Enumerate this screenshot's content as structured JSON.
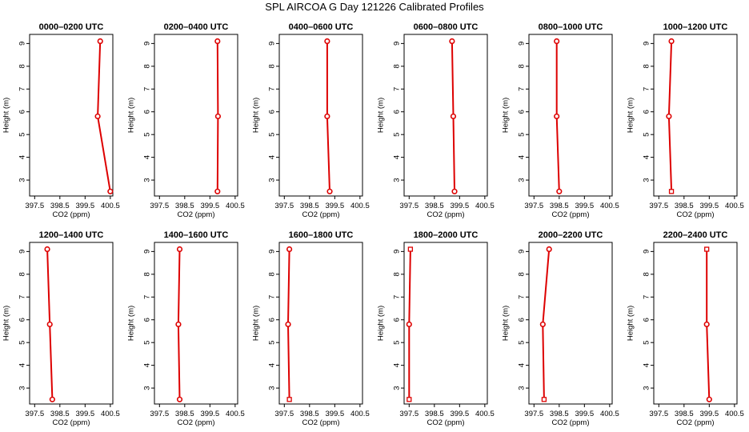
{
  "page": {
    "title": "SPL AIRCOA G  Day 121226  Calibrated Profiles"
  },
  "colors": {
    "series": "#dd0000",
    "axis": "#000000"
  },
  "chart_data": [
    {
      "type": "line",
      "title": "0000–0200 UTC",
      "xlabel": "CO2 (ppm)",
      "ylabel": "Height (m)",
      "xlim": [
        397.3,
        400.6
      ],
      "ylim": [
        2.3,
        9.4
      ],
      "xticks": [
        "397.5",
        "398.5",
        "399.5",
        "400.5"
      ],
      "yticks": [
        "3",
        "4",
        "5",
        "6",
        "7",
        "8",
        "9"
      ],
      "x": [
        400.5,
        400.0,
        400.1
      ],
      "y": [
        2.5,
        5.8,
        9.1
      ],
      "markers": [
        "circle",
        "circle",
        "circle"
      ]
    },
    {
      "type": "line",
      "title": "0200–0400 UTC",
      "xlabel": "CO2 (ppm)",
      "ylabel": "Height (m)",
      "xlim": [
        397.3,
        400.6
      ],
      "ylim": [
        2.3,
        9.4
      ],
      "xticks": [
        "397.5",
        "398.5",
        "399.5",
        "400.5"
      ],
      "yticks": [
        "3",
        "4",
        "5",
        "6",
        "7",
        "8",
        "9"
      ],
      "x": [
        399.8,
        399.82,
        399.8
      ],
      "y": [
        2.5,
        5.8,
        9.1
      ],
      "markers": [
        "circle",
        "circle",
        "circle"
      ]
    },
    {
      "type": "line",
      "title": "0400–0600 UTC",
      "xlabel": "CO2 (ppm)",
      "ylabel": "Height (m)",
      "xlim": [
        397.3,
        400.6
      ],
      "ylim": [
        2.3,
        9.4
      ],
      "xticks": [
        "397.5",
        "398.5",
        "399.5",
        "400.5"
      ],
      "yticks": [
        "3",
        "4",
        "5",
        "6",
        "7",
        "8",
        "9"
      ],
      "x": [
        399.3,
        399.2,
        399.2
      ],
      "y": [
        2.5,
        5.8,
        9.1
      ],
      "markers": [
        "circle",
        "circle",
        "circle"
      ]
    },
    {
      "type": "line",
      "title": "0600–0800 UTC",
      "xlabel": "CO2 (ppm)",
      "ylabel": "Height (m)",
      "xlim": [
        397.3,
        400.6
      ],
      "ylim": [
        2.3,
        9.4
      ],
      "xticks": [
        "397.5",
        "398.5",
        "399.5",
        "400.5"
      ],
      "yticks": [
        "3",
        "4",
        "5",
        "6",
        "7",
        "8",
        "9"
      ],
      "x": [
        399.3,
        399.25,
        399.2
      ],
      "y": [
        2.5,
        5.8,
        9.1
      ],
      "markers": [
        "circle",
        "circle",
        "circle"
      ]
    },
    {
      "type": "line",
      "title": "0800–1000 UTC",
      "xlabel": "CO2 (ppm)",
      "ylabel": "Height (m)",
      "xlim": [
        397.3,
        400.6
      ],
      "ylim": [
        2.3,
        9.4
      ],
      "xticks": [
        "397.5",
        "398.5",
        "399.5",
        "400.5"
      ],
      "yticks": [
        "3",
        "4",
        "5",
        "6",
        "7",
        "8",
        "9"
      ],
      "x": [
        398.5,
        398.4,
        398.4
      ],
      "y": [
        2.5,
        5.8,
        9.1
      ],
      "markers": [
        "circle",
        "circle",
        "circle"
      ]
    },
    {
      "type": "line",
      "title": "1000–1200 UTC",
      "xlabel": "CO2 (ppm)",
      "ylabel": "Height (m)",
      "xlim": [
        397.3,
        400.6
      ],
      "ylim": [
        2.3,
        9.4
      ],
      "xticks": [
        "397.5",
        "398.5",
        "399.5",
        "400.5"
      ],
      "yticks": [
        "3",
        "4",
        "5",
        "6",
        "7",
        "8",
        "9"
      ],
      "x": [
        398.0,
        397.9,
        398.0
      ],
      "y": [
        2.5,
        5.8,
        9.1
      ],
      "markers": [
        "square",
        "circle",
        "circle"
      ]
    },
    {
      "type": "line",
      "title": "1200–1400 UTC",
      "xlabel": "CO2 (ppm)",
      "ylabel": "Height (m)",
      "xlim": [
        397.3,
        400.6
      ],
      "ylim": [
        2.3,
        9.4
      ],
      "xticks": [
        "397.5",
        "398.5",
        "399.5",
        "400.5"
      ],
      "yticks": [
        "3",
        "4",
        "5",
        "6",
        "7",
        "8",
        "9"
      ],
      "x": [
        398.2,
        398.1,
        398.0
      ],
      "y": [
        2.5,
        5.8,
        9.1
      ],
      "markers": [
        "circle",
        "circle",
        "circle"
      ]
    },
    {
      "type": "line",
      "title": "1400–1600 UTC",
      "xlabel": "CO2 (ppm)",
      "ylabel": "Height (m)",
      "xlim": [
        397.3,
        400.6
      ],
      "ylim": [
        2.3,
        9.4
      ],
      "xticks": [
        "397.5",
        "398.5",
        "399.5",
        "400.5"
      ],
      "yticks": [
        "3",
        "4",
        "5",
        "6",
        "7",
        "8",
        "9"
      ],
      "x": [
        398.3,
        398.25,
        398.3
      ],
      "y": [
        2.5,
        5.8,
        9.1
      ],
      "markers": [
        "circle",
        "circle",
        "circle"
      ]
    },
    {
      "type": "line",
      "title": "1600–1800 UTC",
      "xlabel": "CO2 (ppm)",
      "ylabel": "Height (m)",
      "xlim": [
        397.3,
        400.6
      ],
      "ylim": [
        2.3,
        9.4
      ],
      "xticks": [
        "397.5",
        "398.5",
        "399.5",
        "400.5"
      ],
      "yticks": [
        "3",
        "4",
        "5",
        "6",
        "7",
        "8",
        "9"
      ],
      "x": [
        397.7,
        397.65,
        397.7
      ],
      "y": [
        2.5,
        5.8,
        9.1
      ],
      "markers": [
        "square",
        "circle",
        "circle"
      ]
    },
    {
      "type": "line",
      "title": "1800–2000 UTC",
      "xlabel": "CO2 (ppm)",
      "ylabel": "Height (m)",
      "xlim": [
        397.3,
        400.6
      ],
      "ylim": [
        2.3,
        9.4
      ],
      "xticks": [
        "397.5",
        "398.5",
        "399.5",
        "400.5"
      ],
      "yticks": [
        "3",
        "4",
        "5",
        "6",
        "7",
        "8",
        "9"
      ],
      "x": [
        397.5,
        397.5,
        397.55
      ],
      "y": [
        2.5,
        5.8,
        9.1
      ],
      "markers": [
        "square",
        "circle",
        "square"
      ]
    },
    {
      "type": "line",
      "title": "2000–2200 UTC",
      "xlabel": "CO2 (ppm)",
      "ylabel": "Height (m)",
      "xlim": [
        397.3,
        400.6
      ],
      "ylim": [
        2.3,
        9.4
      ],
      "xticks": [
        "397.5",
        "398.5",
        "399.5",
        "400.5"
      ],
      "yticks": [
        "3",
        "4",
        "5",
        "6",
        "7",
        "8",
        "9"
      ],
      "x": [
        397.9,
        397.85,
        398.1
      ],
      "y": [
        2.5,
        5.8,
        9.1
      ],
      "markers": [
        "square",
        "circle",
        "circle"
      ]
    },
    {
      "type": "line",
      "title": "2200–2400 UTC",
      "xlabel": "CO2 (ppm)",
      "ylabel": "Height (m)",
      "xlim": [
        397.3,
        400.6
      ],
      "ylim": [
        2.3,
        9.4
      ],
      "xticks": [
        "397.5",
        "398.5",
        "399.5",
        "400.5"
      ],
      "yticks": [
        "3",
        "4",
        "5",
        "6",
        "7",
        "8",
        "9"
      ],
      "x": [
        399.5,
        399.4,
        399.4
      ],
      "y": [
        2.5,
        5.8,
        9.1
      ],
      "markers": [
        "circle",
        "circle",
        "square"
      ]
    }
  ]
}
